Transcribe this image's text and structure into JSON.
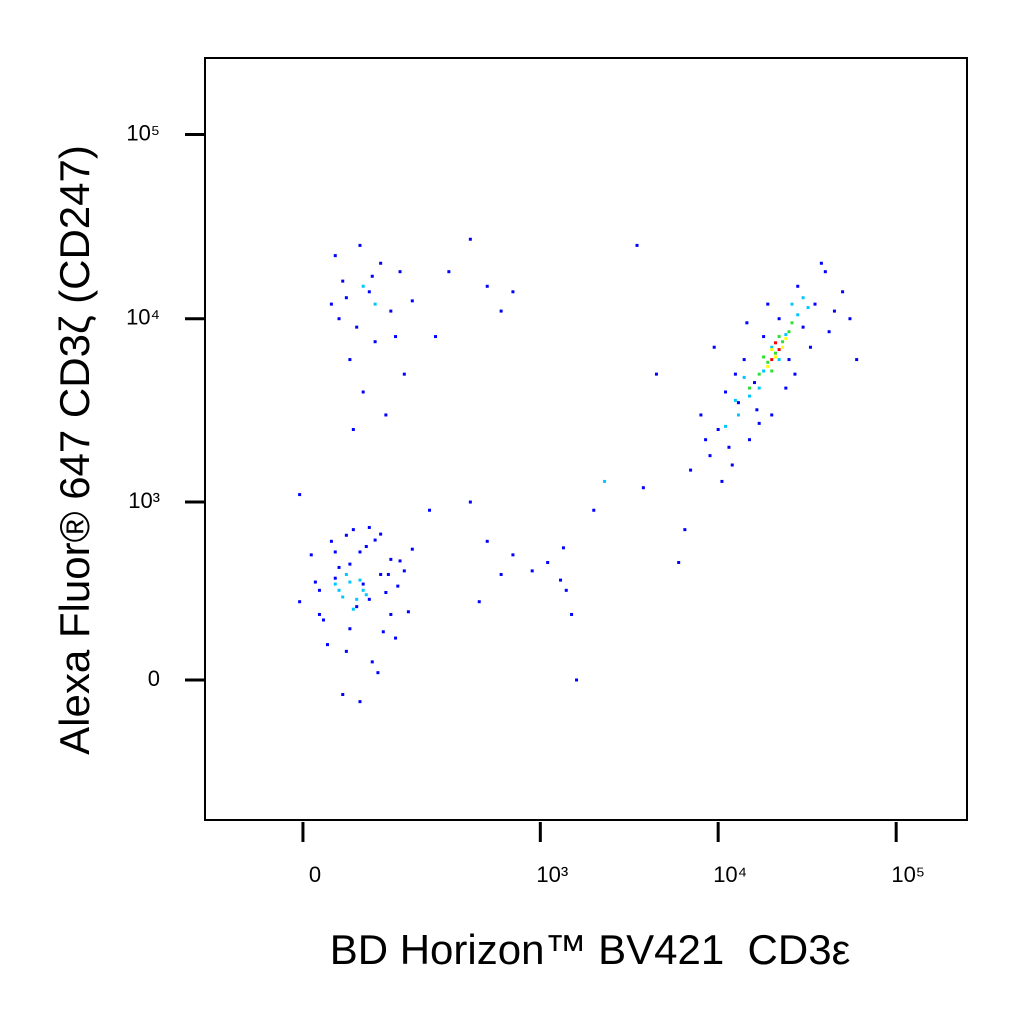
{
  "chart_data": {
    "type": "scatter",
    "x_label": "BD Horizon™ BV421  CD3ε",
    "y_label": "Alexa Fluor® 647 CD3ζ (CD247)",
    "xscale": "biexponential",
    "yscale": "biexponential",
    "xlim": [
      -152,
      250000
    ],
    "ylim": [
      -611,
      260000
    ],
    "xticks": [
      0,
      {
        "value": 1000,
        "label": "10³"
      },
      {
        "value": 10000,
        "label": "10⁴"
      },
      {
        "value": 100000,
        "label": "10⁵"
      }
    ],
    "yticks": [
      0,
      {
        "value": 1000,
        "label": "10³"
      },
      {
        "value": 10000,
        "label": "10⁴"
      },
      {
        "value": 100000,
        "label": "10⁵"
      }
    ],
    "series": [
      {
        "color": "#0000ff",
        "x": [
          20,
          45,
          60,
          75,
          90,
          110,
          130,
          150,
          35,
          55,
          80,
          100,
          140,
          -4,
          10,
          25,
          65,
          95,
          120,
          160,
          40,
          70,
          85,
          115,
          130,
          55,
          30,
          105,
          145,
          170,
          50,
          75,
          15,
          90,
          180,
          60,
          125,
          20,
          110,
          40,
          -4,
          230,
          35,
          50,
          70,
          90,
          110,
          60,
          80,
          130,
          150,
          40,
          100,
          120,
          55,
          75,
          140,
          160,
          45,
          95,
          180,
          65,
          300,
          500,
          600,
          250,
          400,
          700,
          400,
          500,
          700,
          900,
          1100,
          1300,
          1400,
          1350,
          1500,
          1600,
          450,
          600,
          2000,
          3500,
          6000,
          6500,
          3800,
          4500,
          7000,
          8000,
          9000,
          10000,
          11000,
          12000,
          13000,
          14000,
          15000,
          16000,
          18000,
          20000,
          22000,
          25000,
          28000,
          30000,
          35000,
          40000,
          45000,
          50000,
          60000,
          8500,
          10500,
          12500,
          17000,
          19000,
          24000,
          33000,
          38000,
          42000,
          9500,
          14500,
          27000,
          55000,
          11500,
          16500
        ],
        "y": [
          300,
          420,
          150,
          520,
          260,
          380,
          200,
          460,
          600,
          80,
          330,
          610,
          120,
          250,
          500,
          180,
          700,
          50,
          290,
          400,
          360,
          230,
          560,
          140,
          470,
          650,
          100,
          20,
          320,
          210,
          -40,
          -60,
          340,
          720,
          540,
          440,
          380,
          200,
          660,
          520,
          1100,
          900,
          12000,
          16000,
          9000,
          14000,
          20000,
          6000,
          4000,
          11000,
          18000,
          22000,
          7500,
          3000,
          13000,
          25000,
          8000,
          5000,
          10000,
          17000,
          12500,
          2500,
          18000,
          15000,
          11000,
          8000,
          27000,
          14000,
          1000,
          600,
          500,
          400,
          450,
          350,
          300,
          550,
          200,
          0,
          250,
          380,
          900,
          25000,
          450,
          700,
          1200,
          5000,
          1500,
          3000,
          1800,
          2500,
          4000,
          1600,
          3500,
          6000,
          2200,
          4500,
          8000,
          3000,
          10000,
          6000,
          15000,
          9000,
          12000,
          18000,
          11000,
          14000,
          6000,
          2200,
          1300,
          5000,
          2700,
          12000,
          4200,
          7000,
          20000,
          8500,
          7000,
          9500,
          5000,
          10000,
          2000,
          3200
        ]
      },
      {
        "color": "#00c8ff",
        "x": [
          45,
          60,
          70,
          55,
          80,
          65,
          50,
          75,
          85,
          40,
          80,
          100,
          2300,
          11000,
          13000,
          15000,
          14000,
          18000,
          20000,
          24000,
          28000,
          32000,
          17000,
          12500,
          22000,
          26000,
          30000
        ],
        "y": [
          300,
          340,
          260,
          380,
          300,
          220,
          270,
          350,
          280,
          330,
          15000,
          12000,
          1300,
          2600,
          3000,
          3800,
          4800,
          5200,
          7000,
          8200,
          10500,
          11500,
          4200,
          3600,
          6000,
          12000,
          13000
        ]
      },
      {
        "color": "#30e030",
        "x": [
          15000,
          17000,
          19000,
          21000,
          23000,
          25000,
          20000,
          18000,
          22000,
          26000
        ],
        "y": [
          4200,
          5000,
          5800,
          6500,
          7500,
          8500,
          5200,
          6200,
          8000,
          9500
        ]
      },
      {
        "color": "#ffff00",
        "x": [
          19000,
          21000,
          23000,
          20000,
          24000
        ],
        "y": [
          5500,
          6200,
          7000,
          6800,
          7800
        ]
      },
      {
        "color": "#ff0000",
        "x": [
          20000,
          22000,
          21000
        ],
        "y": [
          6000,
          6800,
          7400
        ]
      }
    ]
  }
}
